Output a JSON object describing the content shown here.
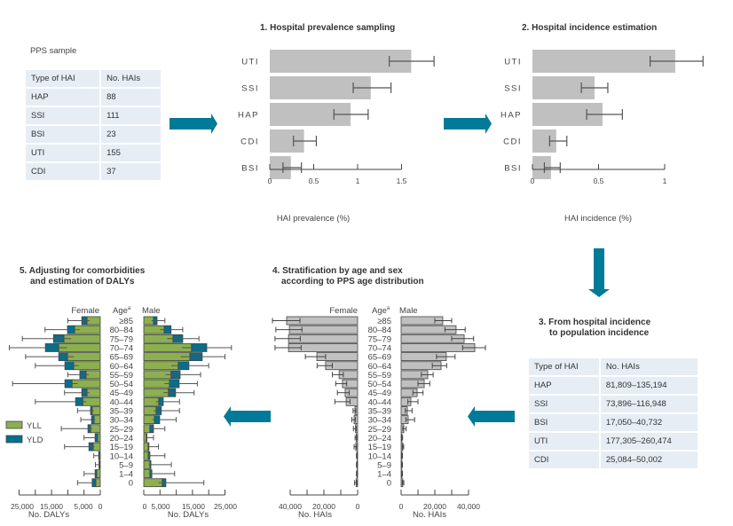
{
  "colors": {
    "arrow": "#007a99",
    "bar_gray": "#c0c0c0",
    "yll": "#8cb04f",
    "yld": "#00708f",
    "table_bg": "#e6edf5"
  },
  "pps_sample": {
    "title": "PPS sample",
    "headers": [
      "Type of HAI",
      "No. HAIs"
    ],
    "rows": [
      [
        "HAP",
        "88"
      ],
      [
        "SSI",
        "111"
      ],
      [
        "BSI",
        "23"
      ],
      [
        "UTI",
        "155"
      ],
      [
        "CDI",
        "37"
      ]
    ]
  },
  "population_table": {
    "title_line1": "3. From hospital incidence",
    "title_line2": "to population incidence",
    "headers": [
      "Type of HAI",
      "No. HAIs"
    ],
    "rows": [
      [
        "HAP",
        "81,809–135,194"
      ],
      [
        "SSI",
        "73,896–116,948"
      ],
      [
        "BSI",
        "17,050–40,732"
      ],
      [
        "UTI",
        "177,305–260,474"
      ],
      [
        "CDI",
        "25,084–50,002"
      ]
    ]
  },
  "arrows": [
    {
      "direction": "right"
    },
    {
      "direction": "right"
    },
    {
      "direction": "down"
    },
    {
      "direction": "left"
    },
    {
      "direction": "left"
    }
  ],
  "chart_data": [
    {
      "type": "bar",
      "orientation": "horizontal",
      "title": "1. Hospital prevalence sampling",
      "xlabel": "HAI prevalence (%)",
      "xlim": [
        0,
        1.5
      ],
      "xticks": [
        "0",
        "0.5",
        "1",
        "1.5"
      ],
      "xtick_values": [
        0,
        0.5,
        1,
        1.5
      ],
      "categories": [
        "UTI",
        "SSI",
        "HAP",
        "CDI",
        "BSI"
      ],
      "values": [
        1.61,
        1.15,
        0.92,
        0.39,
        0.24
      ],
      "ci_low": [
        1.36,
        0.95,
        0.73,
        0.27,
        0.15
      ],
      "ci_high": [
        1.87,
        1.38,
        1.12,
        0.53,
        0.36
      ]
    },
    {
      "type": "bar",
      "orientation": "horizontal",
      "title": "2. Hospital incidence estimation",
      "xlabel": "HAI incidence (%)",
      "xlim": [
        0,
        1
      ],
      "xticks": [
        "0",
        "0.5",
        "1"
      ],
      "xtick_values": [
        0,
        0.5,
        1
      ],
      "categories": [
        "UTI",
        "SSI",
        "HAP",
        "CDI",
        "BSI"
      ],
      "values": [
        1.08,
        0.47,
        0.53,
        0.18,
        0.14
      ],
      "ci_low": [
        0.89,
        0.37,
        0.41,
        0.13,
        0.09
      ],
      "ci_high": [
        1.29,
        0.57,
        0.68,
        0.26,
        0.21
      ]
    },
    {
      "type": "bar",
      "orientation": "population-pyramid",
      "title_line1": "4. Stratification by age and sex",
      "title_line2": "according to PPS age distribution",
      "left_label": "Female",
      "center_label": "Age",
      "center_sup": "a",
      "right_label": "Male",
      "xlabel": "No. HAIs",
      "xlim": [
        0,
        40000
      ],
      "xticks_left": [
        "40,000",
        "20,000",
        "0"
      ],
      "xticks_right": [
        "0",
        "20,000",
        "40,000"
      ],
      "categories": [
        "≥85",
        "80–84",
        "75–79",
        "70–74",
        "65–69",
        "60–64",
        "55–59",
        "50–54",
        "45–49",
        "40–44",
        "35–39",
        "30–34",
        "25–29",
        "20–24",
        "15–19",
        "10–14",
        "5–9",
        "1–4",
        "0"
      ],
      "series": [
        {
          "name": "Female",
          "values": [
            42100,
            40500,
            41000,
            41000,
            24200,
            19000,
            11000,
            9000,
            7400,
            6800,
            1600,
            2100,
            1300,
            800,
            1100,
            400,
            400,
            400,
            900
          ],
          "ci_low": [
            34200,
            33000,
            34000,
            33500,
            19000,
            15000,
            8500,
            6500,
            5000,
            4500,
            1000,
            1300,
            800,
            500,
            600,
            200,
            200,
            200,
            500
          ],
          "ci_high": [
            50500,
            48500,
            49000,
            49000,
            31000,
            24000,
            15000,
            13000,
            12000,
            13500,
            2700,
            3500,
            2500,
            1500,
            2100,
            700,
            700,
            700,
            1800
          ]
        },
        {
          "name": "Male",
          "values": [
            24700,
            32600,
            37400,
            43700,
            26800,
            23700,
            15800,
            13700,
            9500,
            5800,
            3700,
            4200,
            1600,
            500,
            1000,
            500,
            500,
            500,
            1000
          ],
          "ci_low": [
            20000,
            26000,
            30000,
            36500,
            21000,
            18500,
            12000,
            10000,
            7000,
            4000,
            2500,
            2800,
            1000,
            300,
            700,
            300,
            300,
            300,
            700
          ],
          "ci_high": [
            30000,
            38000,
            43000,
            50000,
            32000,
            27000,
            19000,
            17000,
            13000,
            10000,
            6500,
            8000,
            3000,
            900,
            1500,
            800,
            800,
            800,
            1600
          ]
        }
      ]
    },
    {
      "type": "bar",
      "orientation": "population-pyramid-stacked",
      "title_line1": "5. Adjusting for comorbidities",
      "title_line2": "and estimation of DALYs",
      "left_label": "Female",
      "center_label": "Age",
      "center_sup": "a",
      "right_label": "Male",
      "xlabel": "No. DALYs",
      "xlim": [
        0,
        25000
      ],
      "xticks_left": [
        "25,000",
        "15,000",
        "5,000",
        "0"
      ],
      "xticks_right": [
        "0",
        "5,000",
        "15,000",
        "25,000"
      ],
      "legend": [
        {
          "name": "YLL",
          "color": "#8cb04f"
        },
        {
          "name": "YLD",
          "color": "#00708f"
        }
      ],
      "legend_position": "left",
      "categories": [
        "≥85",
        "80–84",
        "75–79",
        "70–74",
        "65–69",
        "60–64",
        "55–59",
        "50–54",
        "45–49",
        "40–44",
        "35–39",
        "30–34",
        "25–29",
        "20–24",
        "15–19",
        "10–14",
        "5–9",
        "1–4",
        "0"
      ],
      "series": [
        {
          "name": "Female YLL",
          "values": [
            4100,
            7900,
            11200,
            12800,
            10100,
            8200,
            4400,
            8700,
            4100,
            5400,
            2500,
            1900,
            3000,
            800,
            2200,
            300,
            200,
            1100,
            1400
          ]
        },
        {
          "name": "Female YLD",
          "values": [
            1600,
            2200,
            3200,
            4100,
            2700,
            2700,
            1900,
            2200,
            1600,
            2200,
            500,
            800,
            800,
            800,
            1300,
            200,
            200,
            500,
            1100
          ]
        },
        {
          "name": "Female total CI high",
          "values": [
            10000,
            17000,
            24000,
            28000,
            23000,
            20000,
            10000,
            27000,
            11000,
            20000,
            7000,
            6000,
            12000,
            5000,
            11000,
            2000,
            1500,
            5000,
            7000
          ]
        },
        {
          "name": "Male YLL",
          "values": [
            3000,
            6300,
            9000,
            14700,
            14200,
            10600,
            8400,
            7900,
            7600,
            4600,
            3800,
            3300,
            1900,
            800,
            1400,
            1400,
            1900,
            1900,
            5700
          ]
        },
        {
          "name": "Male YLD",
          "values": [
            1100,
            2100,
            3000,
            4700,
            3800,
            3300,
            2800,
            3000,
            2200,
            1400,
            1600,
            1600,
            1100,
            200,
            200,
            500,
            300,
            600,
            1100
          ]
        },
        {
          "name": "Male total CI high",
          "values": [
            6500,
            12000,
            17000,
            27000,
            25000,
            20000,
            17500,
            16500,
            15500,
            11000,
            11000,
            10000,
            6500,
            3000,
            4500,
            6500,
            8500,
            9500,
            18500
          ]
        }
      ]
    }
  ]
}
